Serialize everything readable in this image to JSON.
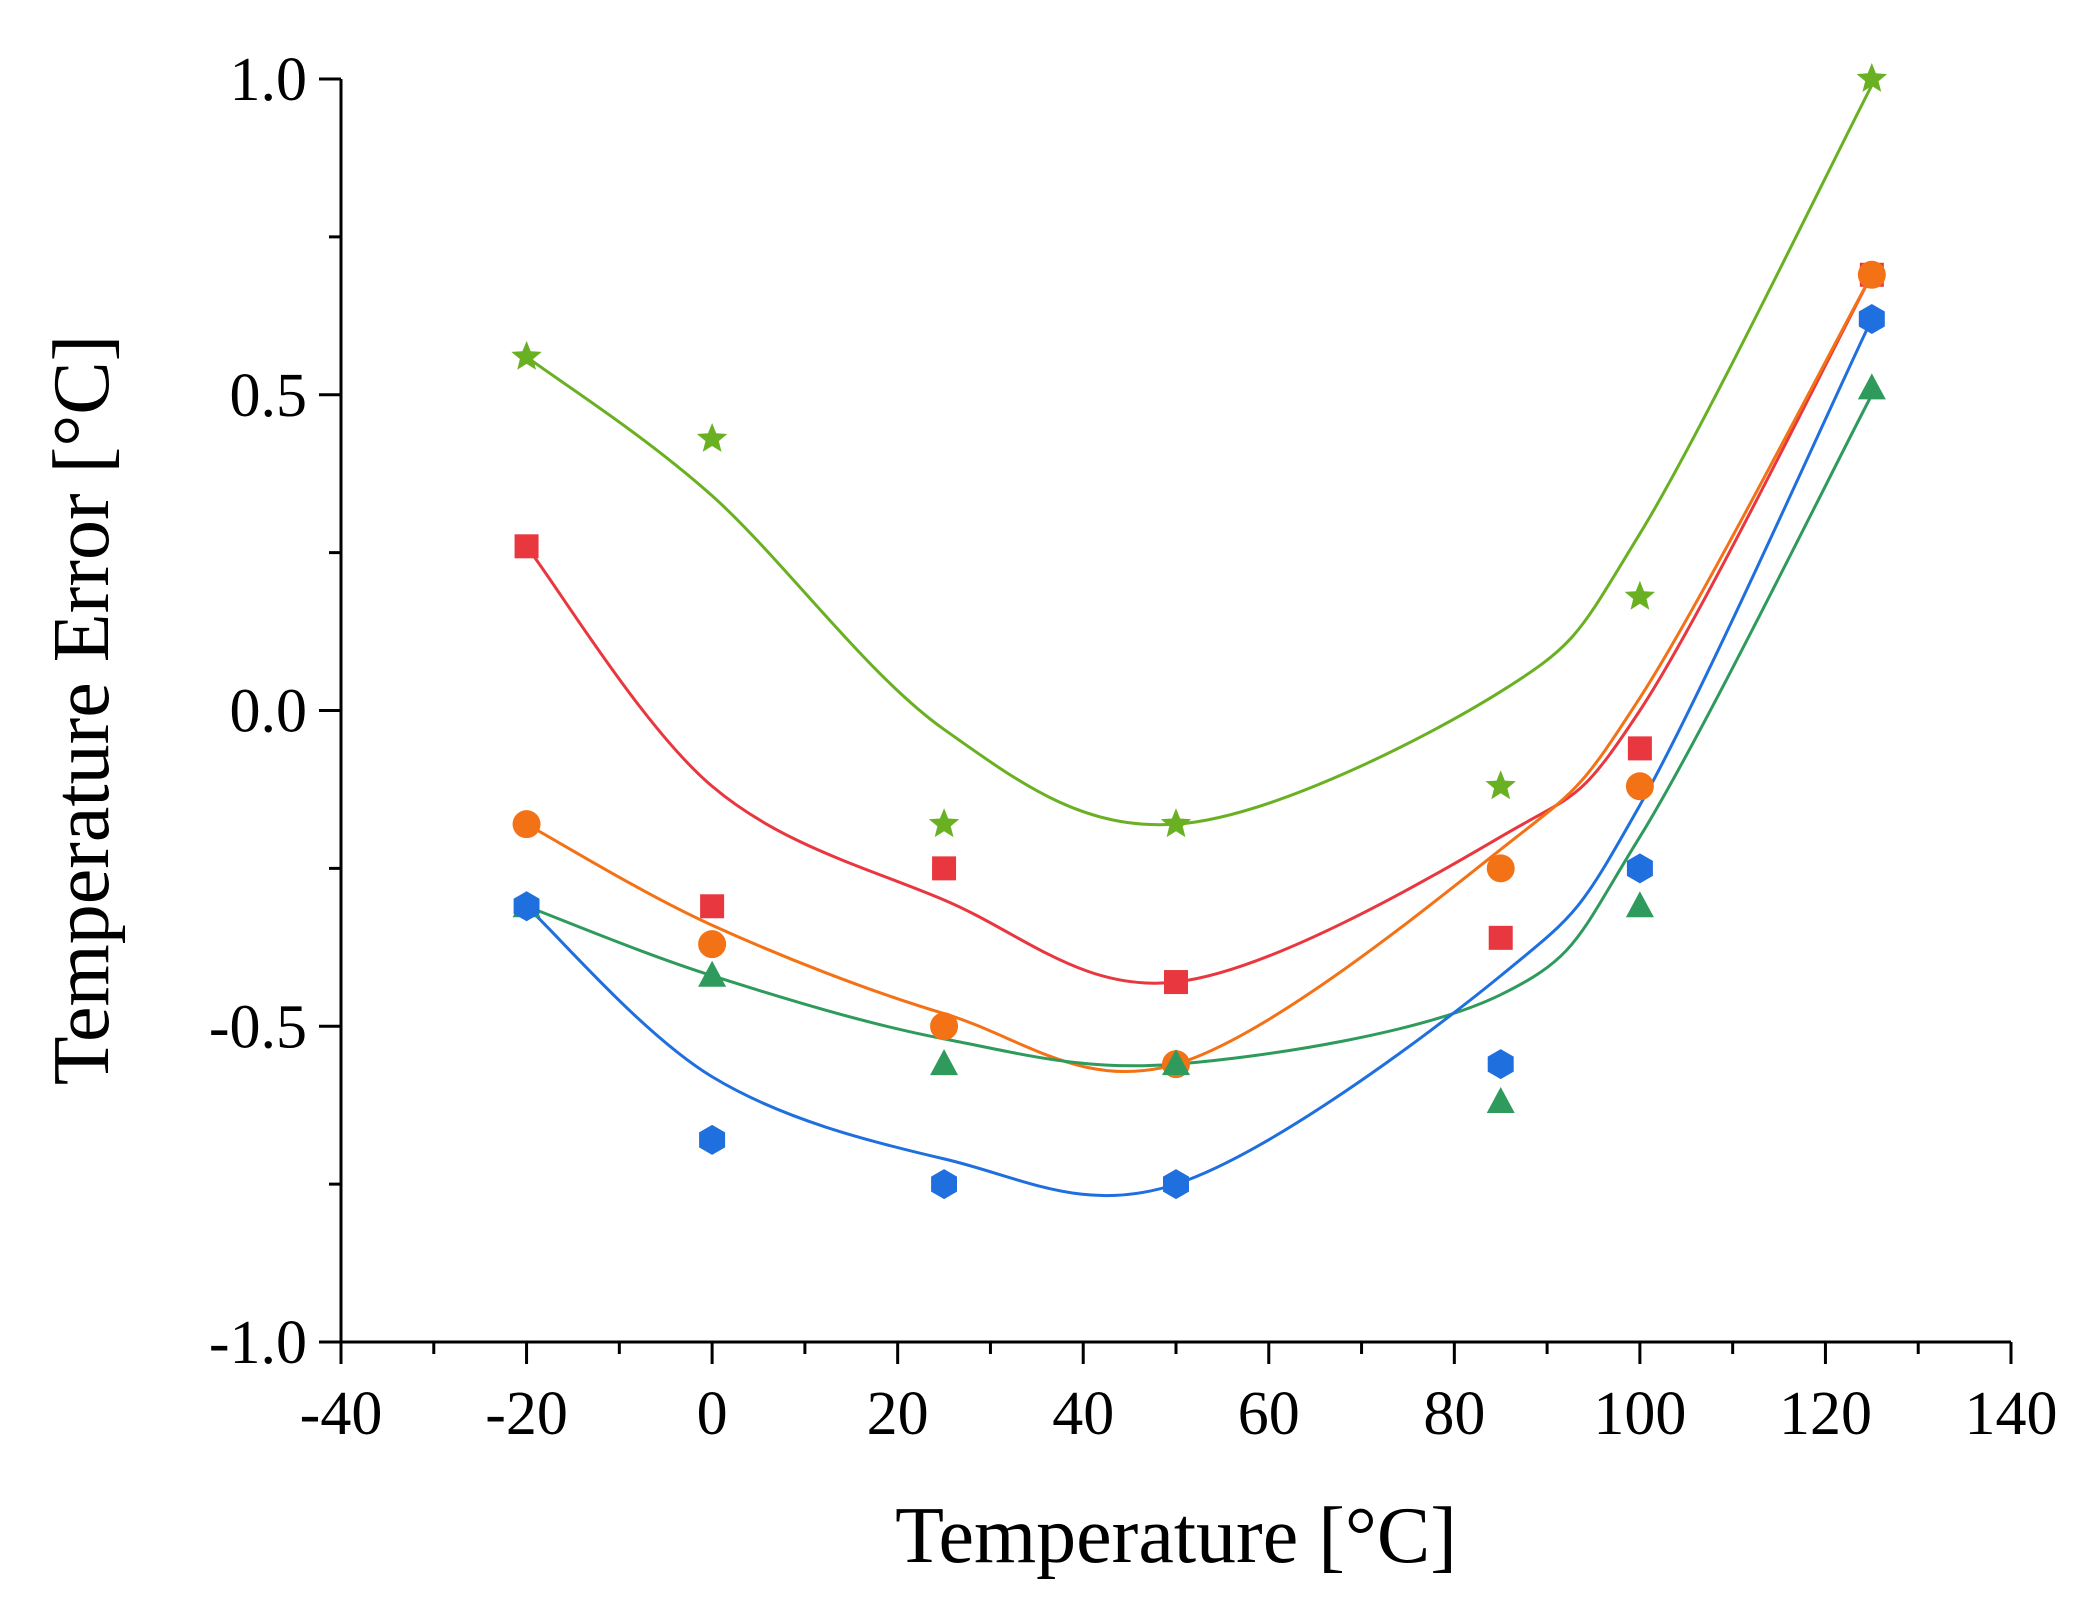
{
  "chart_data": {
    "type": "scatter",
    "title": "",
    "xlabel": "Temperature [°C]",
    "ylabel": "Temperature Error [°C]",
    "xlim": [
      -40,
      140
    ],
    "ylim": [
      -1.0,
      1.0
    ],
    "xticks": [
      -40,
      -20,
      0,
      20,
      40,
      60,
      80,
      100,
      120,
      140
    ],
    "xtick_labels": [
      "-40",
      "-20",
      "0",
      "20",
      "40",
      "60",
      "80",
      "100",
      "120",
      "140"
    ],
    "yticks": [
      -1.0,
      -0.5,
      0.0,
      0.5,
      1.0
    ],
    "ytick_labels": [
      "-1.0",
      "-0.5",
      "0.0",
      "0.5",
      "1.0"
    ],
    "grid": false,
    "legend": "none",
    "series": [
      {
        "name": "green-star",
        "marker": "star",
        "color": "#6ab023",
        "x": [
          -20,
          0,
          25,
          50,
          85,
          100,
          125
        ],
        "y": [
          0.56,
          0.43,
          -0.18,
          -0.18,
          -0.12,
          0.18,
          1.0
        ],
        "fit_x": [
          -20,
          0,
          25,
          50,
          85,
          100,
          125
        ],
        "fit_y": [
          0.56,
          0.34,
          -0.03,
          -0.18,
          0.03,
          0.28,
          0.99
        ]
      },
      {
        "name": "red-square",
        "marker": "square",
        "color": "#e8373f",
        "x": [
          -20,
          0,
          25,
          50,
          85,
          100,
          125
        ],
        "y": [
          0.26,
          -0.31,
          -0.25,
          -0.43,
          -0.36,
          -0.06,
          0.69
        ],
        "fit_x": [
          -20,
          0,
          25,
          50,
          85,
          100,
          125
        ],
        "fit_y": [
          0.26,
          -0.12,
          -0.3,
          -0.43,
          -0.2,
          0.0,
          0.69
        ]
      },
      {
        "name": "orange-circle",
        "marker": "circle",
        "color": "#f47216",
        "x": [
          -20,
          0,
          25,
          50,
          85,
          100,
          125
        ],
        "y": [
          -0.18,
          -0.37,
          -0.5,
          -0.56,
          -0.25,
          -0.12,
          0.69
        ],
        "fit_x": [
          -20,
          0,
          25,
          50,
          85,
          100,
          125
        ],
        "fit_y": [
          -0.18,
          -0.34,
          -0.48,
          -0.56,
          -0.22,
          0.02,
          0.69
        ]
      },
      {
        "name": "teal-triangle",
        "marker": "triangle",
        "color": "#2e9a5c",
        "x": [
          -20,
          0,
          25,
          50,
          85,
          100,
          125
        ],
        "y": [
          -0.31,
          -0.42,
          -0.56,
          -0.56,
          -0.62,
          -0.31,
          0.51
        ],
        "fit_x": [
          -20,
          0,
          25,
          50,
          85,
          100,
          125
        ],
        "fit_y": [
          -0.31,
          -0.42,
          -0.52,
          -0.56,
          -0.45,
          -0.2,
          0.5
        ]
      },
      {
        "name": "blue-hexagon",
        "marker": "hexagon",
        "color": "#1f6fde",
        "x": [
          -20,
          0,
          25,
          50,
          85,
          100,
          125
        ],
        "y": [
          -0.31,
          -0.68,
          -0.75,
          -0.75,
          -0.56,
          -0.25,
          0.62
        ],
        "fit_x": [
          -20,
          0,
          25,
          50,
          85,
          100,
          125
        ],
        "fit_y": [
          -0.31,
          -0.58,
          -0.71,
          -0.75,
          -0.42,
          -0.15,
          0.62
        ]
      }
    ]
  }
}
